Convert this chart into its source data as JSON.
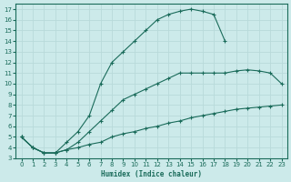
{
  "xlabel": "Humidex (Indice chaleur)",
  "bg_color": "#cceaea",
  "grid_color": "#b8dada",
  "line_color": "#1a6b5a",
  "xlim": [
    -0.5,
    23.5
  ],
  "ylim": [
    3,
    17.5
  ],
  "line1_x": [
    0,
    1,
    2,
    3,
    4,
    5,
    6,
    7,
    8,
    9,
    10,
    11,
    12,
    13,
    14,
    15,
    16,
    17,
    18,
    19,
    20,
    21,
    22,
    23
  ],
  "line1_y": [
    5.0,
    4.0,
    3.5,
    3.5,
    3.8,
    4.0,
    4.3,
    4.5,
    5.0,
    5.3,
    5.5,
    5.8,
    6.0,
    6.3,
    6.5,
    6.8,
    7.0,
    7.2,
    7.4,
    7.6,
    7.7,
    7.8,
    7.9,
    8.0
  ],
  "line2_x": [
    0,
    1,
    2,
    3,
    4,
    5,
    6,
    7,
    8,
    9,
    10,
    11,
    12,
    13,
    14,
    15,
    16,
    17,
    18,
    19,
    20,
    21,
    22,
    23
  ],
  "line2_y": [
    5.0,
    4.0,
    3.5,
    3.5,
    3.8,
    4.5,
    5.5,
    6.5,
    7.5,
    8.5,
    9.0,
    9.5,
    10.0,
    10.5,
    11.0,
    11.0,
    11.0,
    11.0,
    11.0,
    11.2,
    11.3,
    11.2,
    11.0,
    10.0
  ],
  "line3_x": [
    0,
    1,
    2,
    3,
    4,
    5,
    6,
    7,
    8,
    9,
    10,
    11,
    12,
    13,
    14,
    15,
    16,
    17,
    18
  ],
  "line3_y": [
    5.0,
    4.0,
    3.5,
    3.5,
    4.5,
    5.5,
    7.0,
    10.0,
    12.0,
    13.0,
    14.0,
    15.0,
    16.0,
    16.5,
    16.8,
    17.0,
    16.8,
    16.5,
    14.0
  ],
  "xticks": [
    0,
    1,
    2,
    3,
    4,
    5,
    6,
    7,
    8,
    9,
    10,
    11,
    12,
    13,
    14,
    15,
    16,
    17,
    18,
    19,
    20,
    21,
    22,
    23
  ],
  "yticks": [
    3,
    4,
    5,
    6,
    7,
    8,
    9,
    10,
    11,
    12,
    13,
    14,
    15,
    16,
    17
  ]
}
